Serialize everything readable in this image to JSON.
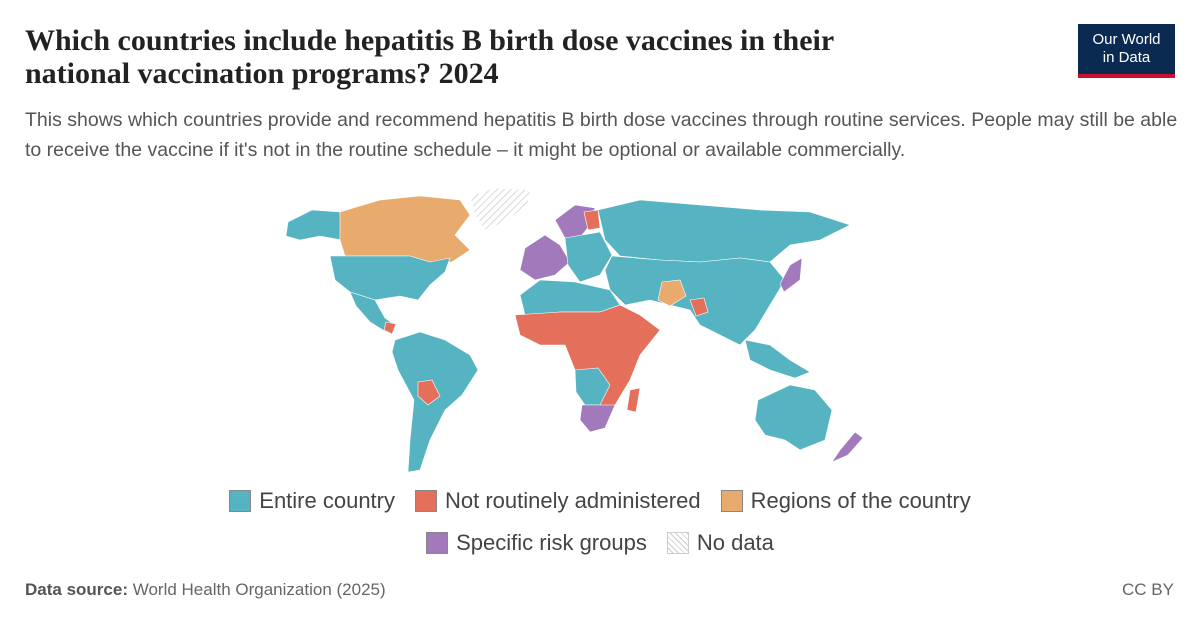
{
  "header": {
    "title_lines": [
      "Which countries include hepatitis B birth dose vaccines in their",
      "national vaccination programs? 2024"
    ],
    "subtitle": "This shows which countries provide and recommend hepatitis B birth dose vaccines through routine services. People may still be able to receive the vaccine if it's not in the routine schedule – it might be optional or available commercially.",
    "logo_lines": [
      "Our World",
      "in Data"
    ]
  },
  "legend": [
    {
      "label": "Entire country",
      "color": "#56b4c2"
    },
    {
      "label": "Not routinely administered",
      "color": "#e4705c"
    },
    {
      "label": "Regions of the country",
      "color": "#e8aa6d"
    },
    {
      "label": "Specific risk groups",
      "color": "#a27abb"
    },
    {
      "label": "No data"
    }
  ],
  "footer": {
    "source_label": "Data source:",
    "source": "World Health Organization (2025)",
    "license": "CC BY"
  }
}
